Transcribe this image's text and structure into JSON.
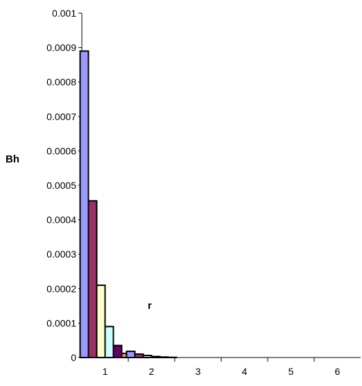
{
  "chart_data": {
    "type": "bar",
    "xlabel": "r",
    "ylabel": "Bh",
    "ylim": [
      0,
      0.001
    ],
    "xlim": [
      0.5,
      6.5
    ],
    "y_ticks": [
      "0",
      "0.0001",
      "0.0002",
      "0.0003",
      "0.0004",
      "0.0005",
      "0.0006",
      "0.0007",
      "0.0008",
      "0.0009",
      "0.001"
    ],
    "x_ticks": [
      "1",
      "2",
      "3",
      "4",
      "5",
      "6"
    ],
    "grid": false,
    "categories": [
      "1",
      "2",
      "3",
      "4",
      "5",
      "6"
    ],
    "series": [
      {
        "color": "#9999ff",
        "values": [
          0.00089,
          1.8e-05,
          0,
          0,
          0,
          0
        ]
      },
      {
        "color": "#993366",
        "values": [
          0.000455,
          1e-05,
          0,
          0,
          0,
          0
        ]
      },
      {
        "color": "#ffffcc",
        "values": [
          0.00021,
          6e-06,
          0,
          0,
          0,
          0
        ]
      },
      {
        "color": "#ccffff",
        "values": [
          9e-05,
          3e-06,
          0,
          0,
          0,
          0
        ]
      },
      {
        "color": "#660066",
        "values": [
          3.5e-05,
          1.5e-06,
          0,
          0,
          0,
          0
        ]
      },
      {
        "color": "#ff8080",
        "values": [
          1.2e-05,
          5e-07,
          0,
          0,
          0,
          0
        ]
      }
    ]
  }
}
